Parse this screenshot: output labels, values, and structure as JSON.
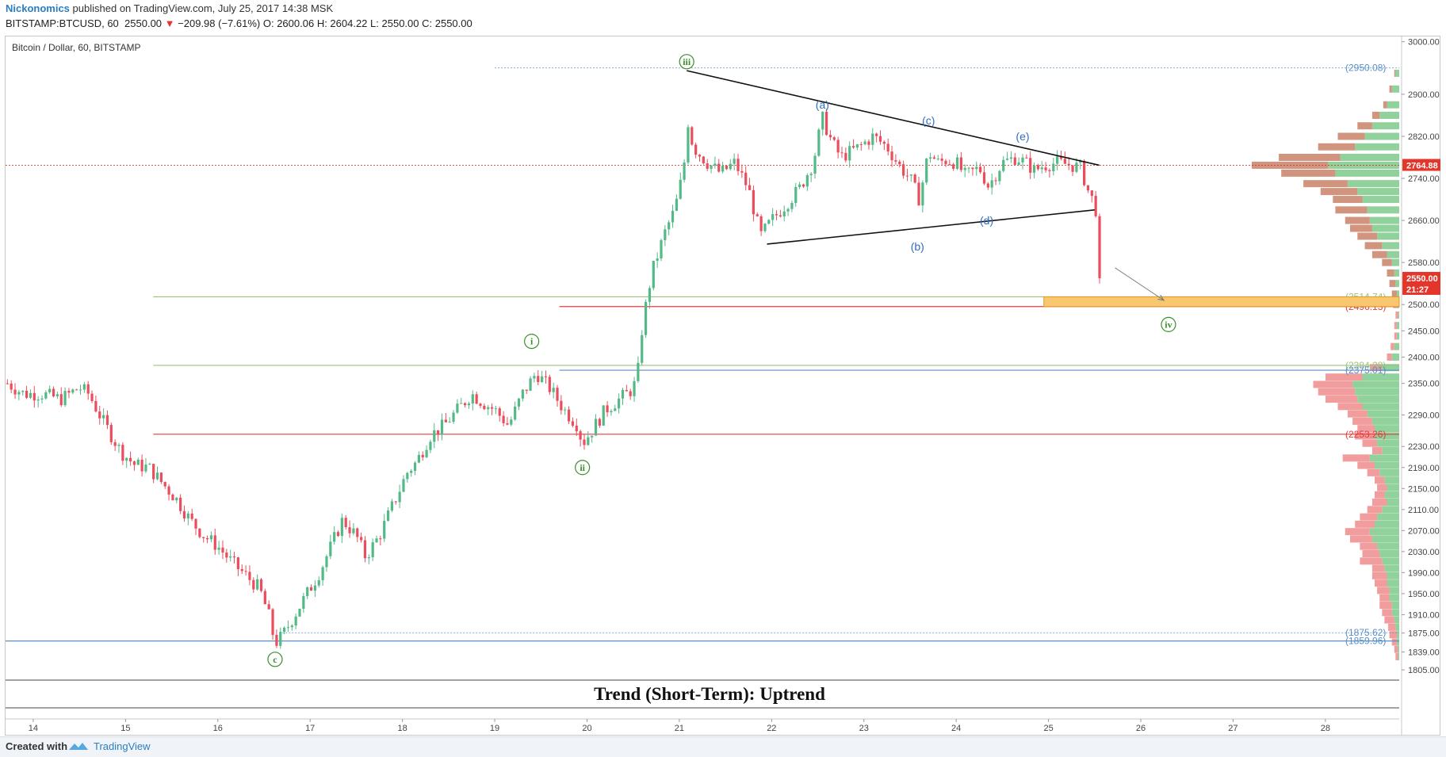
{
  "header": {
    "author": "Nickonomics",
    "published": "published on TradingView.com, July 25, 2017 14:38 MSK"
  },
  "info": {
    "symbol": "BITSTAMP:BTCUSD, 60",
    "last": "2550.00",
    "change": "−209.98 (−7.61%)",
    "open": "O: 2600.06",
    "high": "H: 2604.22",
    "low": "L: 2550.00",
    "close": "C: 2550.00"
  },
  "footer": {
    "created_with": "Created with",
    "brand": "TradingView"
  },
  "colors": {
    "up": "#53b987",
    "down": "#eb4d5c",
    "wave": "#3a8f2a",
    "corrective": "#2f6dbf",
    "target_zone": "#f9c76f",
    "level_green": "#9fc07a",
    "level_red": "#e43b3b",
    "level_blue": "#5a8fc7"
  },
  "chart_data": {
    "type": "candlestick",
    "title": "Bitcoin / Dollar, 60, BITSTAMP",
    "timeframe": "60",
    "x_range": [
      13.7,
      28.8
    ],
    "x_ticks": [
      "14",
      "15",
      "16",
      "17",
      "18",
      "19",
      "20",
      "21",
      "22",
      "23",
      "24",
      "25",
      "26",
      "27",
      "28"
    ],
    "ylim": [
      1790,
      3010
    ],
    "y_ticks": [
      "3000.00",
      "2900.00",
      "2820.00",
      "2740.00",
      "2660.00",
      "2580.00",
      "2500.00",
      "2450.00",
      "2400.00",
      "2350.00",
      "2290.00",
      "2230.00",
      "2190.00",
      "2150.00",
      "2110.00",
      "2070.00",
      "2030.00",
      "1990.00",
      "1950.00",
      "1910.00",
      "1875.00",
      "1839.00",
      "1805.00"
    ],
    "price_path": [
      [
        13.72,
        2350
      ],
      [
        13.9,
        2330
      ],
      [
        14.1,
        2330
      ],
      [
        14.3,
        2320
      ],
      [
        14.5,
        2342
      ],
      [
        14.6,
        2330
      ],
      [
        14.75,
        2280
      ],
      [
        14.95,
        2220
      ],
      [
        15.1,
        2195
      ],
      [
        15.25,
        2190
      ],
      [
        15.4,
        2160
      ],
      [
        15.55,
        2130
      ],
      [
        15.7,
        2090
      ],
      [
        15.85,
        2060
      ],
      [
        16.0,
        2040
      ],
      [
        16.15,
        2010
      ],
      [
        16.3,
        1985
      ],
      [
        16.45,
        1960
      ],
      [
        16.55,
        1910
      ],
      [
        16.62,
        1855
      ],
      [
        16.7,
        1870
      ],
      [
        16.8,
        1900
      ],
      [
        16.9,
        1930
      ],
      [
        17.0,
        1960
      ],
      [
        17.1,
        1990
      ],
      [
        17.2,
        2030
      ],
      [
        17.35,
        2090
      ],
      [
        17.5,
        2060
      ],
      [
        17.6,
        2020
      ],
      [
        17.75,
        2060
      ],
      [
        17.85,
        2100
      ],
      [
        17.95,
        2140
      ],
      [
        18.05,
        2180
      ],
      [
        18.15,
        2200
      ],
      [
        18.3,
        2250
      ],
      [
        18.45,
        2270
      ],
      [
        18.6,
        2300
      ],
      [
        18.75,
        2330
      ],
      [
        18.9,
        2310
      ],
      [
        19.0,
        2300
      ],
      [
        19.15,
        2270
      ],
      [
        19.3,
        2330
      ],
      [
        19.45,
        2370
      ],
      [
        19.6,
        2340
      ],
      [
        19.75,
        2300
      ],
      [
        19.9,
        2270
      ],
      [
        19.95,
        2235
      ],
      [
        20.05,
        2260
      ],
      [
        20.2,
        2300
      ],
      [
        20.35,
        2320
      ],
      [
        20.5,
        2340
      ],
      [
        20.55,
        2370
      ],
      [
        20.6,
        2460
      ],
      [
        20.7,
        2560
      ],
      [
        20.85,
        2640
      ],
      [
        20.95,
        2680
      ],
      [
        21.05,
        2760
      ],
      [
        21.08,
        2860
      ],
      [
        21.15,
        2800
      ],
      [
        21.3,
        2770
      ],
      [
        21.45,
        2750
      ],
      [
        21.6,
        2770
      ],
      [
        21.75,
        2720
      ],
      [
        21.88,
        2630
      ],
      [
        22.0,
        2660
      ],
      [
        22.15,
        2690
      ],
      [
        22.3,
        2720
      ],
      [
        22.45,
        2770
      ],
      [
        22.55,
        2855
      ],
      [
        22.65,
        2810
      ],
      [
        22.75,
        2780
      ],
      [
        22.85,
        2790
      ],
      [
        22.95,
        2800
      ],
      [
        23.1,
        2820
      ],
      [
        23.25,
        2800
      ],
      [
        23.4,
        2760
      ],
      [
        23.5,
        2740
      ],
      [
        23.6,
        2700
      ],
      [
        23.7,
        2790
      ],
      [
        23.8,
        2770
      ],
      [
        23.9,
        2775
      ],
      [
        24.0,
        2770
      ],
      [
        24.1,
        2745
      ],
      [
        24.25,
        2760
      ],
      [
        24.35,
        2725
      ],
      [
        24.5,
        2770
      ],
      [
        24.65,
        2780
      ],
      [
        24.75,
        2770
      ],
      [
        24.85,
        2755
      ],
      [
        24.95,
        2765
      ],
      [
        25.1,
        2770
      ],
      [
        25.25,
        2765
      ],
      [
        25.35,
        2760
      ],
      [
        25.42,
        2720
      ],
      [
        25.5,
        2690
      ],
      [
        25.55,
        2650
      ],
      [
        25.58,
        2550
      ]
    ],
    "waves": [
      {
        "label": "iii",
        "x": 21.08,
        "y": 2962,
        "style": "circle"
      },
      {
        "label": "i",
        "x": 19.4,
        "y": 2430,
        "style": "circle"
      },
      {
        "label": "ii",
        "x": 19.95,
        "y": 2190,
        "style": "circle"
      },
      {
        "label": "c",
        "x": 16.62,
        "y": 1825,
        "style": "circle"
      },
      {
        "label": "iv",
        "x": 26.3,
        "y": 2462,
        "style": "circle"
      },
      {
        "label": "(a)",
        "x": 22.55,
        "y": 2880,
        "style": "paren"
      },
      {
        "label": "(b)",
        "x": 23.58,
        "y": 2610,
        "style": "paren"
      },
      {
        "label": "(c)",
        "x": 23.7,
        "y": 2850,
        "style": "paren"
      },
      {
        "label": "(d)",
        "x": 24.33,
        "y": 2660,
        "style": "paren"
      },
      {
        "label": "(e)",
        "x": 24.72,
        "y": 2820,
        "style": "paren"
      }
    ],
    "trendlines": [
      {
        "from": [
          21.08,
          2945
        ],
        "to": [
          25.55,
          2765
        ]
      },
      {
        "from": [
          21.95,
          2615
        ],
        "to": [
          25.5,
          2680
        ]
      }
    ],
    "arrow": {
      "from": [
        25.72,
        2570
      ],
      "to": [
        26.25,
        2508
      ]
    },
    "target_zone": {
      "from": 2496.13,
      "to": 2514.74,
      "x_start": 24.95
    },
    "levels": [
      {
        "price": 2950.08,
        "label": "(2950.08)",
        "color": "#5a8fc7",
        "dashed": true,
        "x_start": 19.0
      },
      {
        "price": 2764.88,
        "label": "2764.88",
        "color": "#e4352b",
        "dashed": true,
        "x_start": 13.7
      },
      {
        "price": 2514.74,
        "label": "(2514.74)",
        "color": "#9fc07a",
        "dashed": false,
        "x_start": 15.3
      },
      {
        "price": 2496.13,
        "label": "(2496.13)",
        "color": "#e43b3b",
        "dashed": false,
        "x_start": 19.7
      },
      {
        "price": 2384.28,
        "label": "(2384.28)",
        "color": "#9fc07a",
        "dashed": false,
        "x_start": 15.3
      },
      {
        "price": 2375.01,
        "label": "(2375.01)",
        "color": "#5a8fc7",
        "dashed": false,
        "x_start": 19.7
      },
      {
        "price": 2253.26,
        "label": "(2253.26)",
        "color": "#e43b3b",
        "dashed": false,
        "x_start": 15.3
      },
      {
        "price": 1875.62,
        "label": "(1875.62)",
        "color": "#5a8fc7",
        "dashed": true,
        "x_start": 16.7
      },
      {
        "price": 1859.96,
        "label": "(1859.96)",
        "color": "#5a8fc7",
        "dashed": false,
        "x_start": 13.7
      }
    ],
    "price_tags": [
      {
        "label": "2764.88",
        "price": 2764.88,
        "color": "#e4352b"
      },
      {
        "label": "2550.00",
        "price": 2550.0,
        "color": "#e4352b"
      },
      {
        "label": "21:27",
        "price": 2529.0,
        "color": "#e4352b"
      }
    ],
    "volume_profile": [
      {
        "price": 2940,
        "up": 3,
        "down": 1
      },
      {
        "price": 2910,
        "up": 6,
        "down": 2
      },
      {
        "price": 2880,
        "up": 10,
        "down": 3
      },
      {
        "price": 2860,
        "up": 16,
        "down": 6
      },
      {
        "price": 2840,
        "up": 22,
        "down": 12
      },
      {
        "price": 2820,
        "up": 28,
        "down": 22
      },
      {
        "price": 2800,
        "up": 36,
        "down": 30
      },
      {
        "price": 2780,
        "up": 48,
        "down": 50
      },
      {
        "price": 2765,
        "up": 58,
        "down": 62
      },
      {
        "price": 2750,
        "up": 52,
        "down": 44
      },
      {
        "price": 2730,
        "up": 42,
        "down": 36
      },
      {
        "price": 2715,
        "up": 34,
        "down": 30
      },
      {
        "price": 2700,
        "up": 30,
        "down": 24
      },
      {
        "price": 2680,
        "up": 26,
        "down": 26
      },
      {
        "price": 2660,
        "up": 24,
        "down": 20
      },
      {
        "price": 2645,
        "up": 22,
        "down": 18
      },
      {
        "price": 2630,
        "up": 18,
        "down": 16
      },
      {
        "price": 2612,
        "up": 14,
        "down": 14
      },
      {
        "price": 2595,
        "up": 10,
        "down": 12
      },
      {
        "price": 2580,
        "up": 6,
        "down": 8
      },
      {
        "price": 2560,
        "up": 4,
        "down": 6
      },
      {
        "price": 2540,
        "up": 3,
        "down": 5
      },
      {
        "price": 2520,
        "up": 2,
        "down": 4
      },
      {
        "price": 2500,
        "up": 2,
        "down": 3
      },
      {
        "price": 2480,
        "up": 1,
        "down": 2
      },
      {
        "price": 2460,
        "up": 2,
        "down": 2
      },
      {
        "price": 2440,
        "up": 2,
        "down": 2
      },
      {
        "price": 2420,
        "up": 4,
        "down": 3
      },
      {
        "price": 2400,
        "up": 6,
        "down": 4
      },
      {
        "price": 2380,
        "up": 14,
        "down": 10
      },
      {
        "price": 2362,
        "up": 30,
        "down": 30
      },
      {
        "price": 2348,
        "up": 38,
        "down": 32
      },
      {
        "price": 2334,
        "up": 36,
        "down": 30
      },
      {
        "price": 2320,
        "up": 34,
        "down": 26
      },
      {
        "price": 2306,
        "up": 30,
        "down": 20
      },
      {
        "price": 2292,
        "up": 26,
        "down": 16
      },
      {
        "price": 2278,
        "up": 22,
        "down": 16
      },
      {
        "price": 2264,
        "up": 20,
        "down": 14
      },
      {
        "price": 2250,
        "up": 20,
        "down": 16
      },
      {
        "price": 2236,
        "up": 18,
        "down": 12
      },
      {
        "price": 2222,
        "up": 14,
        "down": 8
      },
      {
        "price": 2208,
        "up": 24,
        "down": 22
      },
      {
        "price": 2194,
        "up": 20,
        "down": 14
      },
      {
        "price": 2180,
        "up": 16,
        "down": 10
      },
      {
        "price": 2166,
        "up": 12,
        "down": 8
      },
      {
        "price": 2152,
        "up": 10,
        "down": 8
      },
      {
        "price": 2138,
        "up": 12,
        "down": 8
      },
      {
        "price": 2124,
        "up": 10,
        "down": 12
      },
      {
        "price": 2110,
        "up": 14,
        "down": 12
      },
      {
        "price": 2096,
        "up": 18,
        "down": 14
      },
      {
        "price": 2082,
        "up": 20,
        "down": 16
      },
      {
        "price": 2068,
        "up": 24,
        "down": 20
      },
      {
        "price": 2054,
        "up": 22,
        "down": 18
      },
      {
        "price": 2040,
        "up": 18,
        "down": 14
      },
      {
        "price": 2026,
        "up": 16,
        "down": 14
      },
      {
        "price": 2012,
        "up": 14,
        "down": 18
      },
      {
        "price": 1998,
        "up": 12,
        "down": 10
      },
      {
        "price": 1984,
        "up": 10,
        "down": 12
      },
      {
        "price": 1970,
        "up": 10,
        "down": 10
      },
      {
        "price": 1956,
        "up": 8,
        "down": 10
      },
      {
        "price": 1942,
        "up": 8,
        "down": 8
      },
      {
        "price": 1928,
        "up": 6,
        "down": 10
      },
      {
        "price": 1914,
        "up": 6,
        "down": 8
      },
      {
        "price": 1900,
        "up": 4,
        "down": 8
      },
      {
        "price": 1886,
        "up": 3,
        "down": 6
      },
      {
        "price": 1872,
        "up": 2,
        "down": 6
      },
      {
        "price": 1858,
        "up": 2,
        "down": 4
      },
      {
        "price": 1844,
        "up": 1,
        "down": 3
      },
      {
        "price": 1830,
        "up": 1,
        "down": 2
      }
    ],
    "trend_label": "Trend (Short-Term): Uptrend"
  }
}
